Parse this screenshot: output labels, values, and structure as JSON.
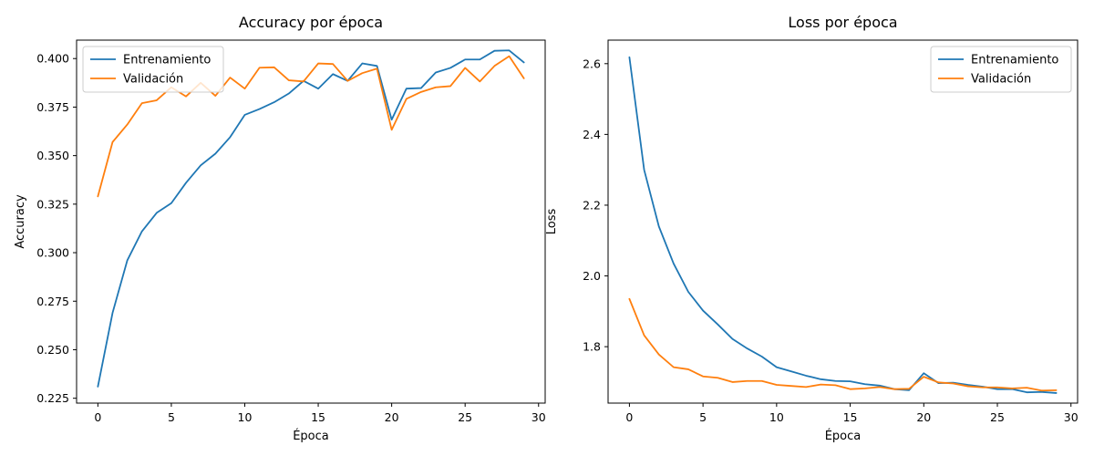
{
  "chart_data": [
    {
      "type": "line",
      "title": "Accuracy por época",
      "xlabel": "Época",
      "ylabel": "Accuracy",
      "xlim": [
        -1.45,
        30.45
      ],
      "ylim": [
        0.2225,
        0.4095
      ],
      "xticks": [
        0,
        5,
        10,
        15,
        20,
        25,
        30
      ],
      "yticks": [
        0.225,
        0.25,
        0.275,
        0.3,
        0.325,
        0.35,
        0.375,
        0.4
      ],
      "ytick_decimals": 3,
      "legend": "upper left",
      "x": [
        0,
        1,
        2,
        3,
        4,
        5,
        6,
        7,
        8,
        9,
        10,
        11,
        12,
        13,
        14,
        15,
        16,
        17,
        18,
        19,
        20,
        21,
        22,
        23,
        24,
        25,
        26,
        27,
        28,
        29
      ],
      "series": [
        {
          "name": "Entrenamiento",
          "color": "#1f77b4",
          "values": [
            0.231,
            0.269,
            0.296,
            0.311,
            0.3205,
            0.3255,
            0.336,
            0.345,
            0.351,
            0.3595,
            0.371,
            0.374,
            0.3775,
            0.382,
            0.3885,
            0.3845,
            0.392,
            0.3885,
            0.3975,
            0.3962,
            0.3685,
            0.3845,
            0.3848,
            0.3928,
            0.3952,
            0.3995,
            0.3995,
            0.404,
            0.4042,
            0.398
          ]
        },
        {
          "name": "Validación",
          "color": "#ff7f0e",
          "values": [
            0.329,
            0.357,
            0.366,
            0.377,
            0.3785,
            0.3852,
            0.3805,
            0.3875,
            0.3808,
            0.3902,
            0.3845,
            0.3953,
            0.3955,
            0.3888,
            0.3882,
            0.3975,
            0.3972,
            0.3885,
            0.3925,
            0.3948,
            0.3633,
            0.3792,
            0.3828,
            0.3852,
            0.3858,
            0.3952,
            0.3882,
            0.3962,
            0.4012,
            0.3898
          ]
        }
      ]
    },
    {
      "type": "line",
      "title": "Loss por época",
      "xlabel": "Época",
      "ylabel": "Loss",
      "xlim": [
        -1.45,
        30.45
      ],
      "ylim": [
        1.6405,
        2.6665
      ],
      "xticks": [
        0,
        5,
        10,
        15,
        20,
        25,
        30
      ],
      "yticks": [
        1.8,
        2.0,
        2.2,
        2.4,
        2.6
      ],
      "ytick_decimals": 1,
      "legend": "upper right",
      "x": [
        0,
        1,
        2,
        3,
        4,
        5,
        6,
        7,
        8,
        9,
        10,
        11,
        12,
        13,
        14,
        15,
        16,
        17,
        18,
        19,
        20,
        21,
        22,
        23,
        24,
        25,
        26,
        27,
        28,
        29
      ],
      "series": [
        {
          "name": "Entrenamiento",
          "color": "#1f77b4",
          "values": [
            2.618,
            2.3,
            2.14,
            2.035,
            1.955,
            1.902,
            1.863,
            1.822,
            1.795,
            1.772,
            1.742,
            1.73,
            1.718,
            1.708,
            1.703,
            1.702,
            1.694,
            1.69,
            1.68,
            1.677,
            1.725,
            1.697,
            1.698,
            1.692,
            1.687,
            1.68,
            1.68,
            1.671,
            1.672,
            1.669
          ]
        },
        {
          "name": "Validación",
          "color": "#ff7f0e",
          "values": [
            1.935,
            1.832,
            1.778,
            1.742,
            1.736,
            1.716,
            1.712,
            1.7,
            1.703,
            1.703,
            1.692,
            1.689,
            1.686,
            1.693,
            1.691,
            1.68,
            1.682,
            1.686,
            1.68,
            1.681,
            1.715,
            1.699,
            1.696,
            1.688,
            1.685,
            1.685,
            1.682,
            1.684,
            1.676,
            1.677
          ]
        }
      ]
    }
  ]
}
